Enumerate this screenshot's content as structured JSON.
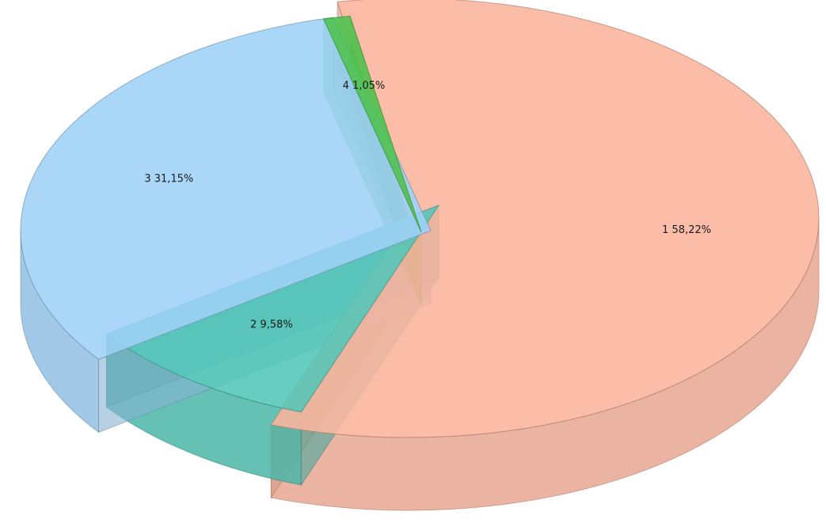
{
  "chart_data": {
    "type": "pie",
    "style": "3d-exploded",
    "title": "",
    "legend": "none",
    "slices": [
      {
        "category": "1",
        "value": 58.22,
        "label": "1 58,22%",
        "color": "#fbb49c"
      },
      {
        "category": "2",
        "value": 9.58,
        "label": "2 9,58%",
        "color": "#52c6b7"
      },
      {
        "category": "3",
        "value": 31.15,
        "label": "3 31,15%",
        "color": "#9ed1f7"
      },
      {
        "category": "4",
        "value": 1.05,
        "label": "4 1,05%",
        "color": "#4cc14c"
      }
    ]
  }
}
